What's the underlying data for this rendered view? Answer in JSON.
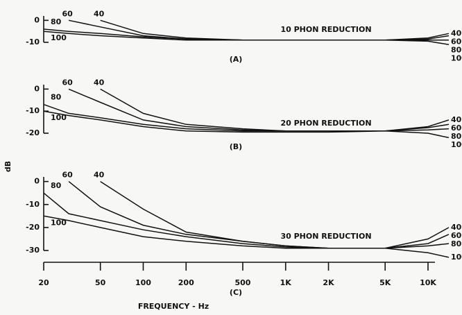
{
  "chart_data": [
    {
      "type": "line",
      "title": "10 PHON REDUCTION",
      "label": "(A)",
      "x": [
        20,
        30,
        50,
        100,
        200,
        500,
        1000,
        2000,
        5000,
        10000,
        14000
      ],
      "xlim": [
        20,
        14000
      ],
      "log_x": true,
      "ylim": [
        -10,
        2
      ],
      "yticks": [
        0,
        -10
      ],
      "series": [
        {
          "name": "40",
          "color": "#111111",
          "values": [
            null,
            null,
            0,
            -6,
            -8,
            -9,
            -9,
            -9,
            -9,
            -8,
            -6
          ]
        },
        {
          "name": "60",
          "color": "#111111",
          "values": [
            null,
            0,
            -3,
            -7,
            -8.5,
            -9,
            -9,
            -9,
            -9,
            -8.5,
            -7
          ]
        },
        {
          "name": "80",
          "color": "#111111",
          "values": [
            -4,
            -5,
            -6,
            -7.5,
            -8.5,
            -9,
            -9,
            -9,
            -9,
            -9,
            -9
          ]
        },
        {
          "name": "100",
          "color": "#111111",
          "values": [
            -5,
            -6,
            -7,
            -8,
            -9,
            -9,
            -9,
            -9,
            -9,
            -9.5,
            -11
          ]
        }
      ]
    },
    {
      "type": "line",
      "title": "20 PHON REDUCTION",
      "label": "(B)",
      "ylabel": "dB",
      "x": [
        20,
        30,
        50,
        100,
        200,
        500,
        1000,
        2000,
        5000,
        10000,
        14000
      ],
      "xlim": [
        20,
        14000
      ],
      "log_x": true,
      "ylim": [
        -20,
        2
      ],
      "yticks": [
        0,
        -10,
        -20
      ],
      "series": [
        {
          "name": "40",
          "color": "#111111",
          "values": [
            null,
            null,
            0,
            -11,
            -16,
            -18,
            -19,
            -19,
            -19,
            -17,
            -14
          ]
        },
        {
          "name": "60",
          "color": "#111111",
          "values": [
            null,
            0,
            -6,
            -14,
            -17,
            -18.5,
            -19,
            -19,
            -19,
            -17.5,
            -16
          ]
        },
        {
          "name": "80",
          "color": "#111111",
          "values": [
            -7,
            -11,
            -13,
            -16,
            -18,
            -19,
            -19,
            -19,
            -19,
            -18.5,
            -18
          ]
        },
        {
          "name": "100",
          "color": "#111111",
          "values": [
            -10,
            -12,
            -14,
            -17,
            -19,
            -19.5,
            -19.5,
            -19.5,
            -19,
            -20,
            -22
          ]
        }
      ]
    },
    {
      "type": "line",
      "title": "30 PHON REDUCTION",
      "label": "(C)",
      "xlabel": "FREQUENCY - Hz",
      "x": [
        20,
        30,
        50,
        100,
        200,
        500,
        1000,
        2000,
        5000,
        10000,
        14000
      ],
      "xlim": [
        20,
        14000
      ],
      "log_x": true,
      "xticks": [
        20,
        50,
        100,
        200,
        500,
        {
          "value": 1000,
          "label": "1K"
        },
        {
          "value": 2000,
          "label": "2K"
        },
        {
          "value": 5000,
          "label": "5K"
        },
        {
          "value": 10000,
          "label": "10K"
        }
      ],
      "ylim": [
        -30,
        2
      ],
      "yticks": [
        0,
        -10,
        -20,
        -30
      ],
      "series": [
        {
          "name": "40",
          "color": "#111111",
          "values": [
            null,
            null,
            0,
            -12,
            -22,
            -26,
            -28,
            -29,
            -29,
            -25,
            -20
          ]
        },
        {
          "name": "60",
          "color": "#111111",
          "values": [
            null,
            0,
            -11,
            -19,
            -23,
            -26,
            -28,
            -29,
            -29,
            -27,
            -23
          ]
        },
        {
          "name": "80",
          "color": "#111111",
          "values": [
            -5,
            -14,
            -17,
            -21,
            -24,
            -27,
            -28.5,
            -29,
            -29,
            -28,
            -27
          ]
        },
        {
          "name": "100",
          "color": "#111111",
          "values": [
            -15,
            -17,
            -20,
            -24,
            -26,
            -28,
            -29,
            -29,
            -29,
            -31,
            -33
          ]
        }
      ]
    }
  ]
}
